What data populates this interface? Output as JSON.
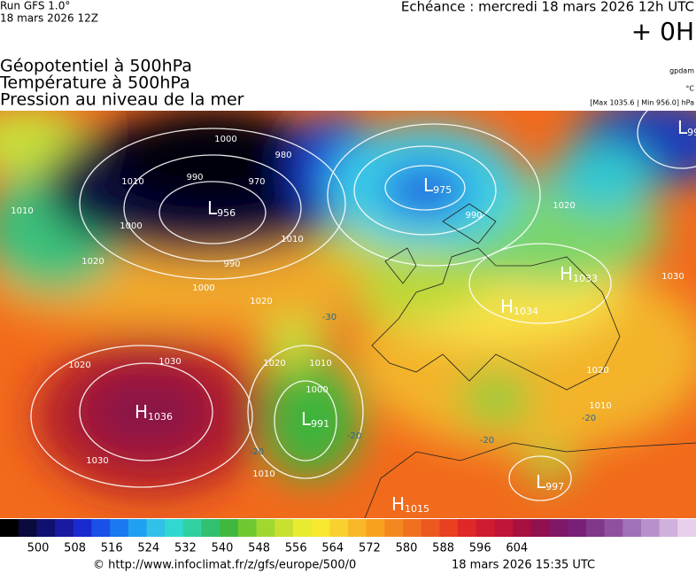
{
  "header": {
    "run": "Run GFS 1.0°",
    "run_date": "18 mars 2026 12Z",
    "forecast": "Echéance : mercredi 18 mars 2026 12h UTC",
    "lead": "+ 0H"
  },
  "titles": [
    "Géopotentiel à 500hPa",
    "Température à 500hPa",
    "Pression au niveau de la mer"
  ],
  "units": {
    "geopotential": "gpdam",
    "temperature": "°C",
    "pressure": "[Max 1035.6 | Min 956.0] hPa"
  },
  "centers": [
    {
      "type": "H",
      "value": "1036"
    },
    {
      "type": "L",
      "value": "991"
    },
    {
      "type": "L",
      "value": "956"
    },
    {
      "type": "L",
      "value": "975"
    },
    {
      "type": "H",
      "value": "1033"
    },
    {
      "type": "H",
      "value": "1034"
    },
    {
      "type": "L",
      "value": "997"
    },
    {
      "type": "H",
      "value": "1015"
    },
    {
      "type": "L",
      "value": "99"
    }
  ],
  "isobar_labels": [
    "1000",
    "990",
    "980",
    "970",
    "1010",
    "1010",
    "1000",
    "1020",
    "990",
    "1000",
    "1010",
    "1020",
    "1030",
    "1020",
    "1030",
    "1020",
    "1010",
    "1000",
    "1010",
    "990",
    "1020",
    "1030",
    "1020",
    "1010",
    "-30",
    "-20",
    "-20",
    "-20",
    "-20"
  ],
  "colorbar": {
    "labels": [
      "500",
      "508",
      "516",
      "524",
      "532",
      "540",
      "548",
      "556",
      "564",
      "572",
      "580",
      "588",
      "596",
      "604"
    ]
  },
  "footer": {
    "source": "© http://www.infoclimat.fr/z/gfs/europe/500/0",
    "generated": "18 mars 2026 15:35 UTC"
  }
}
